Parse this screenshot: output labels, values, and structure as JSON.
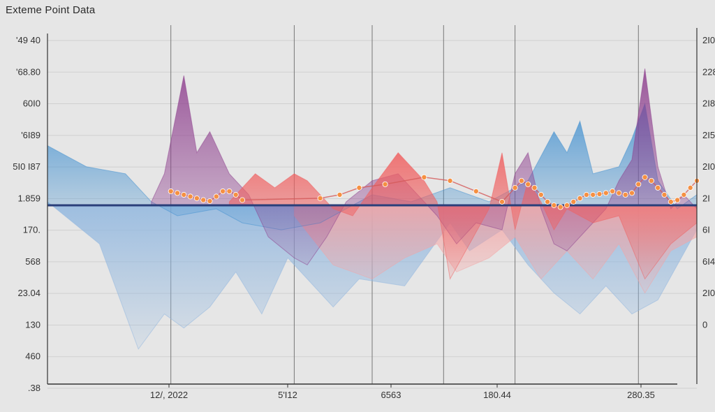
{
  "chart_data": {
    "type": "area",
    "title": "Exteme Point Data",
    "y_ticks_left": [
      "'49 40",
      "'68.80",
      "60I0",
      "'6I89",
      "5I0 I87",
      "1.859",
      "170.",
      "568",
      "23.04",
      "130",
      "460",
      ".38"
    ],
    "y_ticks_right": [
      "2I0",
      "228",
      "2I8",
      "2I5",
      "2I0",
      "2I",
      "6I",
      "6I4",
      "2I0",
      "0",
      "",
      ""
    ],
    "x_ticks": [
      "12/, 2022",
      "5'I12",
      "6563",
      "180.44",
      "280.35"
    ],
    "x_domain": [
      0,
      100
    ],
    "y_domain": [
      0,
      100
    ],
    "baseline": 51,
    "grid": true,
    "legend": "none",
    "colors": {
      "blue": "#3f8fd0",
      "purple": "#8e3f8e",
      "red": "#f06060",
      "light_blue": "#8fb6df",
      "pink": "#f5a4a4",
      "orange": "#f59042",
      "baseline": "#2a3f7a"
    },
    "series": [
      {
        "color": "light_blue",
        "points": [
          [
            0,
            52
          ],
          [
            8,
            40
          ],
          [
            14,
            10
          ],
          [
            18,
            20
          ],
          [
            21,
            16
          ],
          [
            25,
            22
          ],
          [
            29,
            32
          ],
          [
            33,
            20
          ],
          [
            37,
            36
          ],
          [
            40,
            30
          ],
          [
            44,
            22
          ],
          [
            48,
            30
          ],
          [
            55,
            28
          ],
          [
            62,
            46
          ],
          [
            65,
            38
          ],
          [
            70,
            44
          ],
          [
            74,
            34
          ],
          [
            78,
            26
          ],
          [
            82,
            20
          ],
          [
            86,
            28
          ],
          [
            90,
            20
          ],
          [
            94,
            24
          ],
          [
            100,
            44
          ]
        ]
      },
      {
        "color": "pink",
        "points": [
          [
            38,
            48
          ],
          [
            44,
            34
          ],
          [
            50,
            30
          ],
          [
            55,
            36
          ],
          [
            60,
            40
          ],
          [
            63,
            32
          ],
          [
            68,
            36
          ],
          [
            72,
            42
          ],
          [
            76,
            30
          ],
          [
            80,
            38
          ],
          [
            84,
            30
          ],
          [
            88,
            40
          ],
          [
            92,
            26
          ],
          [
            96,
            38
          ],
          [
            100,
            42
          ]
        ]
      },
      {
        "color": "blue",
        "points": [
          [
            0,
            68
          ],
          [
            6,
            62
          ],
          [
            12,
            60
          ],
          [
            16,
            52
          ],
          [
            20,
            48
          ],
          [
            26,
            50
          ],
          [
            30,
            46
          ],
          [
            36,
            44
          ],
          [
            42,
            46
          ],
          [
            50,
            54
          ],
          [
            56,
            52
          ],
          [
            62,
            56
          ],
          [
            68,
            52
          ],
          [
            74,
            58
          ],
          [
            78,
            72
          ],
          [
            80,
            66
          ],
          [
            82,
            75
          ],
          [
            84,
            60
          ],
          [
            88,
            62
          ],
          [
            90,
            70
          ],
          [
            92,
            80
          ],
          [
            94,
            58
          ],
          [
            97,
            50
          ],
          [
            100,
            54
          ]
        ]
      },
      {
        "color": "purple",
        "points": [
          [
            16,
            52
          ],
          [
            18,
            60
          ],
          [
            21,
            88
          ],
          [
            23,
            66
          ],
          [
            25,
            72
          ],
          [
            28,
            60
          ],
          [
            31,
            54
          ],
          [
            34,
            42
          ],
          [
            38,
            36
          ],
          [
            40,
            34
          ],
          [
            43,
            42
          ],
          [
            46,
            52
          ],
          [
            50,
            58
          ],
          [
            54,
            60
          ],
          [
            57,
            54
          ],
          [
            60,
            48
          ],
          [
            63,
            40
          ],
          [
            66,
            46
          ],
          [
            70,
            44
          ],
          [
            72,
            60
          ],
          [
            74,
            66
          ],
          [
            76,
            50
          ],
          [
            78,
            40
          ],
          [
            80,
            38
          ],
          [
            83,
            44
          ],
          [
            86,
            50
          ],
          [
            88,
            58
          ],
          [
            90,
            64
          ],
          [
            92,
            90
          ],
          [
            94,
            62
          ],
          [
            96,
            50
          ],
          [
            98,
            54
          ],
          [
            100,
            50
          ]
        ]
      },
      {
        "color": "red",
        "points": [
          [
            28,
            52
          ],
          [
            32,
            60
          ],
          [
            35,
            56
          ],
          [
            38,
            60
          ],
          [
            40,
            58
          ],
          [
            44,
            50
          ],
          [
            47,
            48
          ],
          [
            50,
            56
          ],
          [
            54,
            66
          ],
          [
            58,
            58
          ],
          [
            60,
            52
          ],
          [
            62,
            30
          ],
          [
            65,
            40
          ],
          [
            68,
            50
          ],
          [
            70,
            66
          ],
          [
            72,
            44
          ],
          [
            74,
            58
          ],
          [
            76,
            52
          ],
          [
            78,
            44
          ],
          [
            80,
            50
          ],
          [
            84,
            46
          ],
          [
            88,
            48
          ],
          [
            92,
            30
          ],
          [
            96,
            40
          ],
          [
            100,
            46
          ]
        ]
      }
    ],
    "markers": [
      [
        19,
        55
      ],
      [
        20,
        54.5
      ],
      [
        21,
        54
      ],
      [
        22,
        53.5
      ],
      [
        23,
        53
      ],
      [
        24,
        52.5
      ],
      [
        25,
        52.2
      ],
      [
        26,
        53.5
      ],
      [
        27,
        55
      ],
      [
        28,
        55
      ],
      [
        29,
        54
      ],
      [
        30,
        52.5
      ],
      [
        42,
        53
      ],
      [
        45,
        54
      ],
      [
        48,
        56
      ],
      [
        52,
        57
      ],
      [
        58,
        59
      ],
      [
        62,
        58
      ],
      [
        66,
        55
      ],
      [
        70,
        52
      ],
      [
        72,
        56
      ],
      [
        73,
        58
      ],
      [
        74,
        57
      ],
      [
        75,
        56
      ],
      [
        76,
        54
      ],
      [
        77,
        52
      ],
      [
        78,
        51
      ],
      [
        79,
        50.5
      ],
      [
        80,
        51
      ],
      [
        81,
        52
      ],
      [
        82,
        53
      ],
      [
        83,
        54
      ],
      [
        84,
        54
      ],
      [
        85,
        54.2
      ],
      [
        86,
        54.5
      ],
      [
        87,
        55
      ],
      [
        88,
        54.5
      ],
      [
        89,
        54
      ],
      [
        90,
        54.5
      ],
      [
        91,
        57
      ],
      [
        92,
        59
      ],
      [
        93,
        58
      ],
      [
        94,
        56
      ],
      [
        95,
        54
      ],
      [
        96,
        52
      ],
      [
        97,
        52.5
      ],
      [
        98,
        54
      ],
      [
        99,
        56
      ],
      [
        100,
        58
      ]
    ]
  }
}
